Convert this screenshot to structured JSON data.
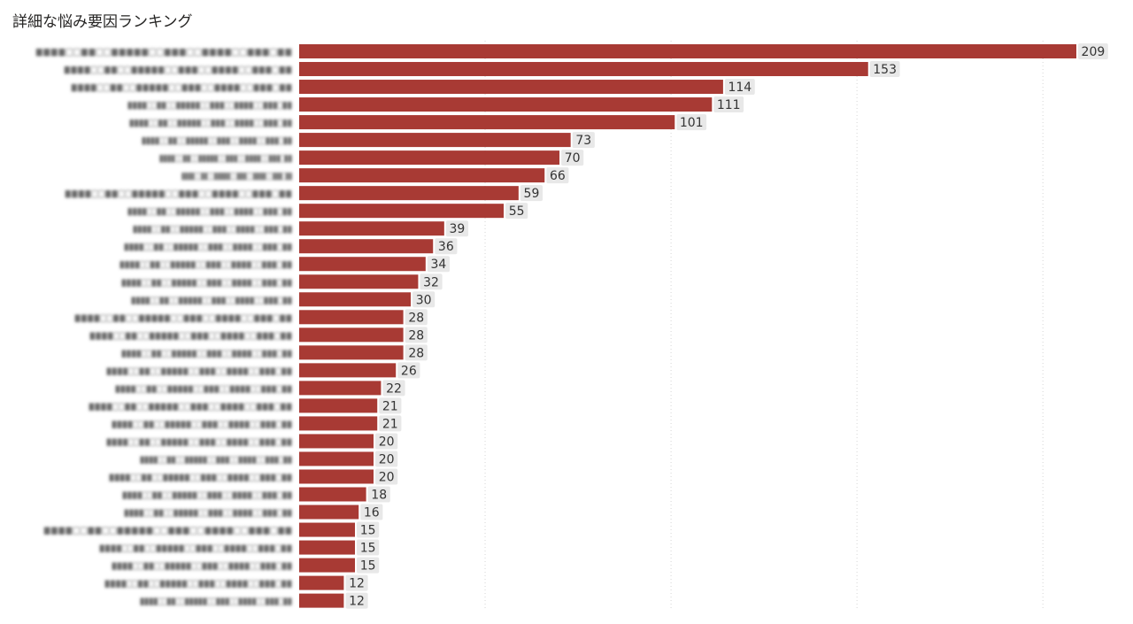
{
  "chart_data": {
    "type": "bar",
    "orientation": "horizontal",
    "title": "詳細な悩み要因ランキング",
    "categories_note": "category labels are blurred/unreadable in the screenshot",
    "categories": [
      "",
      "",
      "",
      "",
      "",
      "",
      "",
      "",
      "",
      "",
      "",
      "",
      "",
      "",
      "",
      "",
      "",
      "",
      "",
      "",
      "",
      "",
      "",
      "",
      "",
      "",
      "",
      "",
      "",
      "",
      "",
      ""
    ],
    "values": [
      209,
      153,
      114,
      111,
      101,
      73,
      70,
      66,
      59,
      55,
      39,
      36,
      34,
      32,
      30,
      28,
      28,
      28,
      26,
      22,
      21,
      21,
      20,
      20,
      20,
      18,
      16,
      15,
      15,
      15,
      12,
      12
    ],
    "xlim": [
      0,
      209
    ],
    "grid": true,
    "legend": "none",
    "bar_color": "#a83a34",
    "label_bg_color": "#e8e8e8"
  }
}
